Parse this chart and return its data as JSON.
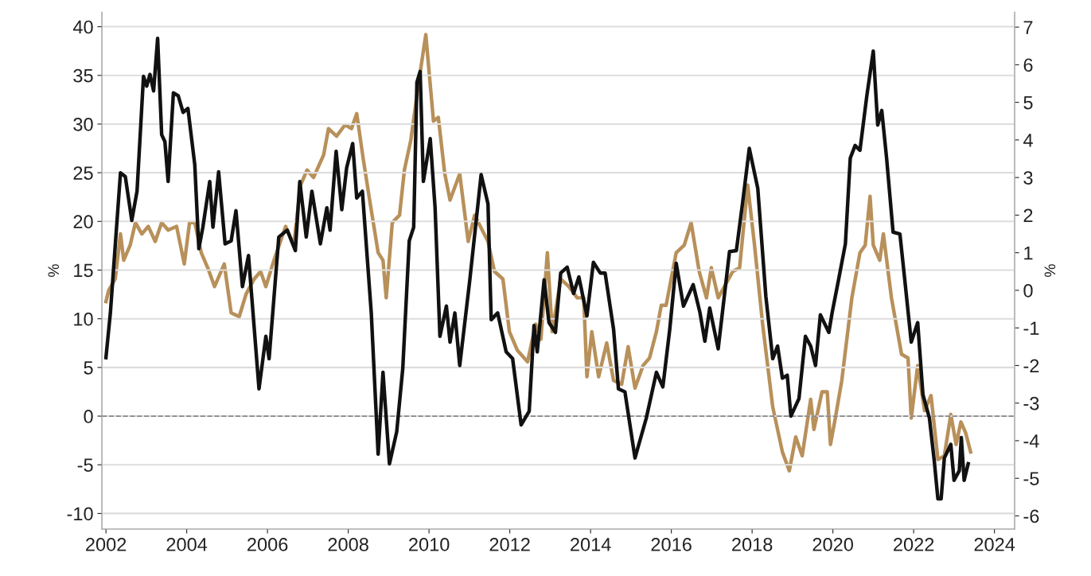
{
  "chart_data": {
    "type": "line",
    "ylabel": "%",
    "y2label": "%",
    "xlim": [
      2001.9,
      2024.5
    ],
    "xticks": [
      2002,
      2004,
      2006,
      2008,
      2010,
      2012,
      2014,
      2016,
      2018,
      2020,
      2022,
      2024
    ],
    "ylim": [
      -11.6,
      41.5
    ],
    "yticks": [
      -10,
      -5,
      0,
      5,
      10,
      15,
      20,
      25,
      30,
      35,
      40
    ],
    "y2lim": [
      -6.35,
      7.4
    ],
    "y2ticks": [
      -6,
      -5,
      -4,
      -3,
      -2,
      -1,
      0,
      1,
      2,
      3,
      4,
      5,
      6,
      7
    ],
    "grid": "y",
    "line_style": "solid",
    "marker": "none",
    "ref_lines": [
      {
        "axis": "y",
        "value": 0,
        "line_style": "dashed",
        "color": "#888888"
      }
    ],
    "series": [
      {
        "color": "#b8905a",
        "axis": "y2",
        "x": [
          2002.0,
          2002.07,
          2002.23,
          2002.36,
          2002.44,
          2002.6,
          2002.73,
          2002.89,
          2003.05,
          2003.22,
          2003.38,
          2003.54,
          2003.75,
          2003.94,
          2004.07,
          2004.2,
          2004.36,
          2004.52,
          2004.69,
          2004.93,
          2005.1,
          2005.3,
          2005.47,
          2005.67,
          2005.83,
          2005.96,
          2006.16,
          2006.45,
          2006.65,
          2006.82,
          2006.98,
          2007.14,
          2007.39,
          2007.51,
          2007.71,
          2007.92,
          2008.08,
          2008.21,
          2008.37,
          2008.53,
          2008.74,
          2008.86,
          2008.94,
          2009.09,
          2009.27,
          2009.39,
          2009.55,
          2009.74,
          2009.92,
          2010.11,
          2010.23,
          2010.39,
          2010.52,
          2010.76,
          2010.97,
          2011.13,
          2011.46,
          2011.62,
          2011.83,
          2011.99,
          2012.19,
          2012.44,
          2012.64,
          2012.77,
          2012.93,
          2013.05,
          2013.26,
          2013.46,
          2013.67,
          2013.83,
          2013.91,
          2014.03,
          2014.2,
          2014.4,
          2014.57,
          2014.77,
          2014.93,
          2015.1,
          2015.3,
          2015.46,
          2015.63,
          2015.75,
          2015.87,
          2016.12,
          2016.32,
          2016.49,
          2016.69,
          2016.87,
          2016.99,
          2017.16,
          2017.52,
          2017.69,
          2017.89,
          2018.06,
          2018.26,
          2018.51,
          2018.75,
          2018.92,
          2019.08,
          2019.24,
          2019.45,
          2019.53,
          2019.73,
          2019.86,
          2019.94,
          2020.06,
          2020.22,
          2020.47,
          2020.67,
          2020.8,
          2020.92,
          2021.0,
          2021.16,
          2021.25,
          2021.45,
          2021.7,
          2021.86,
          2021.94,
          2022.1,
          2022.27,
          2022.43,
          2022.6,
          2022.76,
          2022.92,
          2023.05,
          2023.17,
          2023.29,
          2023.41
        ],
        "values": [
          -0.3,
          0.0,
          0.3,
          1.5,
          0.8,
          1.2,
          1.8,
          1.5,
          1.7,
          1.3,
          1.8,
          1.6,
          1.7,
          0.7,
          1.8,
          1.8,
          1.0,
          0.6,
          0.1,
          0.7,
          -0.6,
          -0.7,
          -0.1,
          0.3,
          0.5,
          0.1,
          0.8,
          1.7,
          1.2,
          2.8,
          3.2,
          3.0,
          3.6,
          4.3,
          4.1,
          4.4,
          4.3,
          4.7,
          3.5,
          2.4,
          1.0,
          0.8,
          -0.2,
          1.8,
          2.0,
          3.2,
          4.0,
          5.5,
          6.8,
          4.5,
          4.6,
          3.1,
          2.4,
          3.1,
          1.3,
          2.0,
          1.3,
          0.5,
          0.3,
          -1.1,
          -1.6,
          -1.9,
          -0.9,
          -1.3,
          1.0,
          -1.1,
          0.3,
          0.1,
          -0.2,
          -0.2,
          -2.3,
          -1.1,
          -2.3,
          -1.4,
          -2.4,
          -2.5,
          -1.5,
          -2.6,
          -2.0,
          -1.8,
          -1.1,
          -0.4,
          -0.4,
          1.0,
          1.2,
          1.8,
          0.5,
          -0.2,
          0.6,
          -0.2,
          0.5,
          0.6,
          2.8,
          1.2,
          -0.9,
          -3.1,
          -4.3,
          -4.8,
          -3.9,
          -4.4,
          -2.9,
          -3.7,
          -2.7,
          -2.7,
          -4.1,
          -3.4,
          -2.4,
          -0.2,
          1.0,
          1.2,
          2.5,
          1.2,
          0.8,
          1.5,
          -0.2,
          -1.7,
          -1.8,
          -3.4,
          -2.0,
          -3.2,
          -2.8,
          -4.5,
          -4.4,
          -3.3,
          -4.1,
          -3.5,
          -3.8,
          -4.3
        ]
      },
      {
        "color": "#111111",
        "axis": "y",
        "x": [
          2002.0,
          2002.11,
          2002.36,
          2002.48,
          2002.64,
          2002.77,
          2002.93,
          2003.01,
          2003.09,
          2003.18,
          2003.28,
          2003.38,
          2003.46,
          2003.54,
          2003.67,
          2003.79,
          2003.91,
          2004.03,
          2004.2,
          2004.3,
          2004.4,
          2004.57,
          2004.65,
          2004.79,
          2004.95,
          2005.1,
          2005.22,
          2005.38,
          2005.53,
          2005.79,
          2005.96,
          2006.04,
          2006.28,
          2006.49,
          2006.69,
          2006.8,
          2006.96,
          2007.1,
          2007.31,
          2007.47,
          2007.55,
          2007.7,
          2007.84,
          2007.96,
          2008.11,
          2008.21,
          2008.35,
          2008.57,
          2008.74,
          2008.86,
          2009.02,
          2009.2,
          2009.35,
          2009.51,
          2009.62,
          2009.7,
          2009.78,
          2009.86,
          2010.03,
          2010.15,
          2010.27,
          2010.43,
          2010.52,
          2010.64,
          2010.76,
          2011.01,
          2011.29,
          2011.46,
          2011.54,
          2011.7,
          2011.91,
          2012.07,
          2012.28,
          2012.48,
          2012.6,
          2012.68,
          2012.85,
          2012.97,
          2013.13,
          2013.26,
          2013.42,
          2013.58,
          2013.71,
          2013.91,
          2014.07,
          2014.24,
          2014.36,
          2014.57,
          2014.69,
          2014.85,
          2015.1,
          2015.38,
          2015.63,
          2015.79,
          2015.96,
          2016.12,
          2016.3,
          2016.54,
          2016.71,
          2016.83,
          2016.95,
          2017.16,
          2017.44,
          2017.61,
          2017.77,
          2017.93,
          2018.14,
          2018.34,
          2018.51,
          2018.63,
          2018.75,
          2018.87,
          2018.96,
          2019.16,
          2019.32,
          2019.45,
          2019.57,
          2019.69,
          2019.9,
          2019.98,
          2020.14,
          2020.31,
          2020.43,
          2020.55,
          2020.67,
          2020.84,
          2021.0,
          2021.11,
          2021.21,
          2021.33,
          2021.49,
          2021.66,
          2021.78,
          2021.94,
          2022.1,
          2022.23,
          2022.39,
          2022.51,
          2022.6,
          2022.68,
          2022.76,
          2022.92,
          2023.0,
          2023.13,
          2023.18,
          2023.25,
          2023.35
        ],
        "values": [
          6.0,
          10.6,
          25.0,
          24.6,
          20.1,
          23.1,
          34.9,
          33.9,
          35.1,
          33.4,
          38.8,
          28.9,
          28.2,
          24.1,
          33.2,
          32.9,
          31.2,
          31.6,
          25.8,
          17.2,
          19.4,
          24.1,
          19.4,
          25.1,
          17.7,
          18.0,
          21.1,
          13.3,
          16.5,
          2.8,
          8.2,
          5.9,
          18.4,
          19.1,
          17.0,
          24.1,
          18.4,
          23.1,
          17.7,
          21.4,
          19.1,
          27.2,
          21.2,
          25.5,
          28.0,
          22.4,
          23.1,
          10.6,
          -3.9,
          4.5,
          -4.9,
          -1.6,
          4.9,
          18.0,
          19.4,
          34.3,
          35.4,
          24.1,
          28.5,
          21.4,
          8.2,
          11.3,
          7.6,
          10.6,
          5.2,
          14.0,
          24.8,
          21.8,
          9.9,
          10.6,
          6.6,
          5.9,
          -0.9,
          0.5,
          9.3,
          6.6,
          14.0,
          9.6,
          8.6,
          14.7,
          15.3,
          12.6,
          14.3,
          10.3,
          15.8,
          14.7,
          14.7,
          8.9,
          2.8,
          2.5,
          -4.3,
          -0.2,
          4.5,
          3.0,
          8.9,
          15.7,
          11.3,
          13.5,
          10.6,
          7.7,
          11.1,
          6.9,
          16.9,
          17.0,
          22.1,
          27.5,
          23.4,
          12.3,
          5.9,
          7.2,
          3.9,
          4.2,
          0.0,
          1.8,
          8.2,
          7.2,
          5.2,
          10.4,
          8.6,
          10.6,
          14.0,
          17.7,
          26.5,
          27.8,
          27.3,
          32.9,
          37.5,
          29.9,
          31.4,
          26.5,
          18.9,
          18.7,
          14.0,
          7.6,
          9.6,
          2.2,
          -0.2,
          -4.6,
          -8.5,
          -8.5,
          -4.3,
          -2.9,
          -6.6,
          -5.6,
          -2.2,
          -6.6,
          -4.9
        ]
      }
    ]
  }
}
